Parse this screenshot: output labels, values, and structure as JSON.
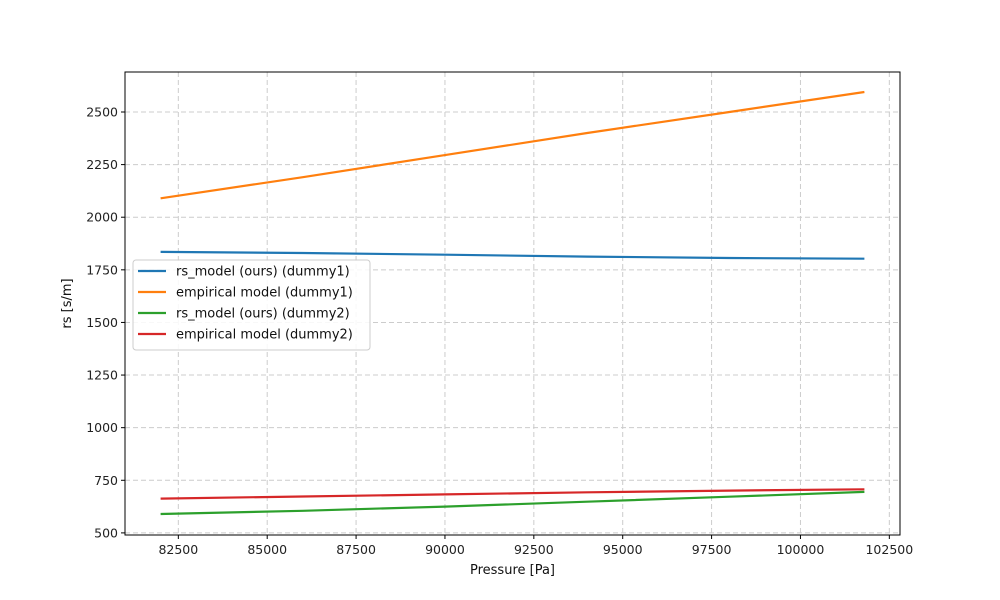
{
  "chart_data": {
    "type": "line",
    "title": "",
    "xlabel": "Pressure [Pa]",
    "ylabel": "rs [s/m]",
    "xlim": [
      81000,
      102800
    ],
    "ylim": [
      490,
      2690
    ],
    "xticks": [
      82500,
      85000,
      87500,
      90000,
      92500,
      95000,
      97500,
      100000,
      102500
    ],
    "yticks": [
      500,
      750,
      1000,
      1250,
      1500,
      1750,
      2000,
      2250,
      2500
    ],
    "grid": true,
    "legend_position": "center-left",
    "series": [
      {
        "name": "rs_model (ours) (dummy1)",
        "color": "#1f77b4",
        "x": [
          82000,
          86000,
          90000,
          94000,
          98000,
          101800
        ],
        "y": [
          1835,
          1830,
          1822,
          1813,
          1806,
          1803
        ]
      },
      {
        "name": "empirical model (dummy1)",
        "color": "#ff7f0e",
        "x": [
          82000,
          86000,
          90000,
          94000,
          98000,
          101800
        ],
        "y": [
          2090,
          2190,
          2295,
          2400,
          2500,
          2595
        ]
      },
      {
        "name": "rs_model (ours) (dummy2)",
        "color": "#2ca02c",
        "x": [
          82000,
          86000,
          90000,
          94000,
          98000,
          101800
        ],
        "y": [
          590,
          605,
          625,
          648,
          672,
          695
        ]
      },
      {
        "name": "empirical model (dummy2)",
        "color": "#d62728",
        "x": [
          82000,
          86000,
          90000,
          94000,
          98000,
          101800
        ],
        "y": [
          663,
          673,
          683,
          693,
          701,
          707
        ]
      }
    ]
  }
}
